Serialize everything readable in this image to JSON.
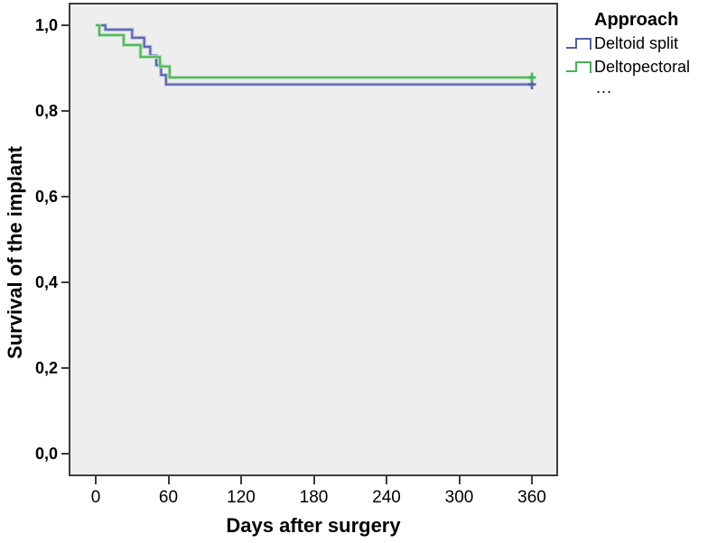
{
  "chart_data": {
    "type": "line",
    "subtype": "kaplan-meier-step-survival",
    "xlabel": "Days after surgery",
    "ylabel": "Survival of the implant",
    "x_ticks": {
      "labels": [
        "0",
        "60",
        "120",
        "180",
        "240",
        "300",
        "360"
      ],
      "values": [
        0,
        60,
        120,
        180,
        240,
        300,
        360
      ]
    },
    "y_ticks": {
      "labels": [
        "1,0",
        "0,8",
        "0,6",
        "0,4",
        "0,2",
        "0,0"
      ],
      "values": [
        1.0,
        0.8,
        0.6,
        0.4,
        0.2,
        0.0
      ]
    },
    "xlim": [
      -21,
      383
    ],
    "ylim": [
      -0.053,
      1.053
    ],
    "grid": false,
    "legend": {
      "title": "Approach",
      "position": "outside-top-right",
      "overflow_ellipsis": "...",
      "items": [
        {
          "label": "Deltoid split"
        },
        {
          "label": "Deltopectoral"
        }
      ]
    },
    "series": [
      {
        "name": "Deltoid split",
        "color": "#5360ab",
        "halo_color": "#b4bade",
        "step_points": [
          [
            0,
            1.0
          ],
          [
            8,
            0.99
          ],
          [
            30,
            0.971
          ],
          [
            40,
            0.95
          ],
          [
            45,
            0.929
          ],
          [
            50,
            0.907
          ],
          [
            54,
            0.884
          ],
          [
            58,
            0.862
          ],
          [
            362,
            0.862
          ]
        ],
        "censored": [
          [
            360,
            0.862
          ]
        ]
      },
      {
        "name": "Deltopectoral",
        "color": "#48b354",
        "halo_color": "#aedcb3",
        "step_points": [
          [
            0,
            1.0
          ],
          [
            3,
            0.977
          ],
          [
            23,
            0.954
          ],
          [
            37,
            0.926
          ],
          [
            53,
            0.904
          ],
          [
            61,
            0.878
          ],
          [
            362,
            0.878
          ]
        ],
        "censored": [
          [
            360,
            0.878
          ]
        ]
      }
    ]
  },
  "colors": {
    "plot_background": "#eeeeee",
    "frame": "#3d3d3d",
    "text": "#000000"
  }
}
